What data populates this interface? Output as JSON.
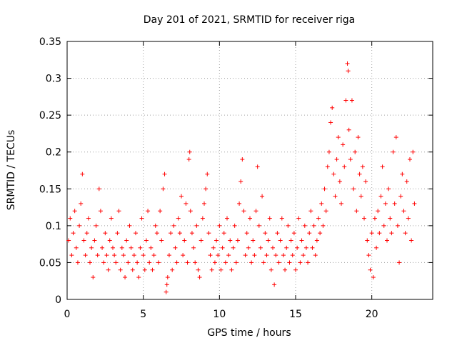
{
  "chart_data": {
    "type": "scatter",
    "title": "Day 201 of 2021, SRMTID for receiver riga",
    "xlabel": "GPS time / hours",
    "ylabel": "SRMTID / TECUs",
    "xlim": [
      0,
      24
    ],
    "ylim": [
      0,
      0.35
    ],
    "xticks": [
      0,
      5,
      10,
      15,
      20
    ],
    "xtick_labels": [
      "0",
      "5",
      "10",
      "15",
      "20"
    ],
    "yticks": [
      0,
      0.05,
      0.1,
      0.15,
      0.2,
      0.25,
      0.3,
      0.35
    ],
    "ytick_labels": [
      "0",
      "0.05",
      "0.1",
      "0.15",
      "0.2",
      "0.25",
      "0.3",
      "0.35"
    ],
    "grid": true,
    "marker": "+",
    "color": "#ff0000",
    "series": [
      {
        "name": "SRMTID",
        "points": [
          [
            0.1,
            0.08
          ],
          [
            0.2,
            0.11
          ],
          [
            0.3,
            0.06
          ],
          [
            0.4,
            0.09
          ],
          [
            0.5,
            0.12
          ],
          [
            0.6,
            0.07
          ],
          [
            0.7,
            0.05
          ],
          [
            0.8,
            0.1
          ],
          [
            0.9,
            0.13
          ],
          [
            1.0,
            0.17
          ],
          [
            1.1,
            0.08
          ],
          [
            1.2,
            0.06
          ],
          [
            1.3,
            0.09
          ],
          [
            1.4,
            0.11
          ],
          [
            1.5,
            0.05
          ],
          [
            1.6,
            0.07
          ],
          [
            1.7,
            0.03
          ],
          [
            1.8,
            0.08
          ],
          [
            1.9,
            0.1
          ],
          [
            2.0,
            0.06
          ],
          [
            2.1,
            0.15
          ],
          [
            2.2,
            0.12
          ],
          [
            2.3,
            0.07
          ],
          [
            2.4,
            0.05
          ],
          [
            2.5,
            0.09
          ],
          [
            2.6,
            0.06
          ],
          [
            2.7,
            0.04
          ],
          [
            2.8,
            0.08
          ],
          [
            2.9,
            0.11
          ],
          [
            3.0,
            0.07
          ],
          [
            3.1,
            0.06
          ],
          [
            3.2,
            0.05
          ],
          [
            3.3,
            0.09
          ],
          [
            3.4,
            0.12
          ],
          [
            3.5,
            0.04
          ],
          [
            3.6,
            0.07
          ],
          [
            3.7,
            0.06
          ],
          [
            3.8,
            0.03
          ],
          [
            3.9,
            0.08
          ],
          [
            4.0,
            0.05
          ],
          [
            4.1,
            0.1
          ],
          [
            4.2,
            0.07
          ],
          [
            4.3,
            0.04
          ],
          [
            4.4,
            0.06
          ],
          [
            4.5,
            0.09
          ],
          [
            4.6,
            0.05
          ],
          [
            4.7,
            0.03
          ],
          [
            4.8,
            0.07
          ],
          [
            4.9,
            0.11
          ],
          [
            5.0,
            0.06
          ],
          [
            5.1,
            0.04
          ],
          [
            5.2,
            0.08
          ],
          [
            5.3,
            0.12
          ],
          [
            5.4,
            0.05
          ],
          [
            5.5,
            0.07
          ],
          [
            5.6,
            0.04
          ],
          [
            5.7,
            0.06
          ],
          [
            5.8,
            0.1
          ],
          [
            5.9,
            0.09
          ],
          [
            6.0,
            0.05
          ],
          [
            6.1,
            0.12
          ],
          [
            6.2,
            0.08
          ],
          [
            6.3,
            0.15
          ],
          [
            6.4,
            0.17
          ],
          [
            6.5,
            0.01
          ],
          [
            6.55,
            0.02
          ],
          [
            6.6,
            0.03
          ],
          [
            6.7,
            0.06
          ],
          [
            6.8,
            0.09
          ],
          [
            6.9,
            0.04
          ],
          [
            7.0,
            0.1
          ],
          [
            7.1,
            0.07
          ],
          [
            7.2,
            0.05
          ],
          [
            7.3,
            0.11
          ],
          [
            7.4,
            0.09
          ],
          [
            7.5,
            0.14
          ],
          [
            7.6,
            0.06
          ],
          [
            7.7,
            0.08
          ],
          [
            7.8,
            0.13
          ],
          [
            7.9,
            0.05
          ],
          [
            8.0,
            0.19
          ],
          [
            8.05,
            0.2
          ],
          [
            8.1,
            0.12
          ],
          [
            8.2,
            0.09
          ],
          [
            8.3,
            0.07
          ],
          [
            8.4,
            0.05
          ],
          [
            8.5,
            0.1
          ],
          [
            8.6,
            0.04
          ],
          [
            8.7,
            0.03
          ],
          [
            8.8,
            0.08
          ],
          [
            8.9,
            0.11
          ],
          [
            9.0,
            0.13
          ],
          [
            9.1,
            0.15
          ],
          [
            9.2,
            0.17
          ],
          [
            9.3,
            0.09
          ],
          [
            9.4,
            0.06
          ],
          [
            9.5,
            0.04
          ],
          [
            9.6,
            0.07
          ],
          [
            9.7,
            0.05
          ],
          [
            9.8,
            0.08
          ],
          [
            9.9,
            0.06
          ],
          [
            10.0,
            0.1
          ],
          [
            10.1,
            0.04
          ],
          [
            10.2,
            0.07
          ],
          [
            10.3,
            0.09
          ],
          [
            10.4,
            0.05
          ],
          [
            10.5,
            0.11
          ],
          [
            10.6,
            0.06
          ],
          [
            10.7,
            0.08
          ],
          [
            10.8,
            0.04
          ],
          [
            10.9,
            0.07
          ],
          [
            11.0,
            0.1
          ],
          [
            11.1,
            0.05
          ],
          [
            11.2,
            0.08
          ],
          [
            11.3,
            0.13
          ],
          [
            11.4,
            0.16
          ],
          [
            11.5,
            0.19
          ],
          [
            11.6,
            0.12
          ],
          [
            11.7,
            0.06
          ],
          [
            11.8,
            0.09
          ],
          [
            11.9,
            0.07
          ],
          [
            12.0,
            0.11
          ],
          [
            12.1,
            0.05
          ],
          [
            12.2,
            0.08
          ],
          [
            12.3,
            0.06
          ],
          [
            12.4,
            0.12
          ],
          [
            12.5,
            0.18
          ],
          [
            12.6,
            0.1
          ],
          [
            12.7,
            0.07
          ],
          [
            12.8,
            0.14
          ],
          [
            12.9,
            0.05
          ],
          [
            13.0,
            0.09
          ],
          [
            13.1,
            0.06
          ],
          [
            13.2,
            0.08
          ],
          [
            13.3,
            0.11
          ],
          [
            13.4,
            0.04
          ],
          [
            13.5,
            0.07
          ],
          [
            13.6,
            0.02
          ],
          [
            13.7,
            0.06
          ],
          [
            13.8,
            0.09
          ],
          [
            13.9,
            0.05
          ],
          [
            14.0,
            0.08
          ],
          [
            14.1,
            0.11
          ],
          [
            14.2,
            0.06
          ],
          [
            14.3,
            0.04
          ],
          [
            14.4,
            0.07
          ],
          [
            14.5,
            0.1
          ],
          [
            14.6,
            0.05
          ],
          [
            14.7,
            0.08
          ],
          [
            14.8,
            0.06
          ],
          [
            14.9,
            0.09
          ],
          [
            15.0,
            0.04
          ],
          [
            15.1,
            0.07
          ],
          [
            15.2,
            0.11
          ],
          [
            15.3,
            0.05
          ],
          [
            15.4,
            0.08
          ],
          [
            15.5,
            0.06
          ],
          [
            15.6,
            0.1
          ],
          [
            15.7,
            0.07
          ],
          [
            15.8,
            0.05
          ],
          [
            15.9,
            0.09
          ],
          [
            16.0,
            0.12
          ],
          [
            16.1,
            0.07
          ],
          [
            16.2,
            0.1
          ],
          [
            16.3,
            0.06
          ],
          [
            16.4,
            0.08
          ],
          [
            16.5,
            0.11
          ],
          [
            16.6,
            0.09
          ],
          [
            16.7,
            0.13
          ],
          [
            16.8,
            0.1
          ],
          [
            16.9,
            0.15
          ],
          [
            17.0,
            0.12
          ],
          [
            17.1,
            0.18
          ],
          [
            17.2,
            0.2
          ],
          [
            17.3,
            0.24
          ],
          [
            17.4,
            0.26
          ],
          [
            17.5,
            0.17
          ],
          [
            17.6,
            0.14
          ],
          [
            17.7,
            0.19
          ],
          [
            17.8,
            0.22
          ],
          [
            17.9,
            0.16
          ],
          [
            18.0,
            0.13
          ],
          [
            18.1,
            0.21
          ],
          [
            18.2,
            0.18
          ],
          [
            18.3,
            0.27
          ],
          [
            18.4,
            0.32
          ],
          [
            18.45,
            0.31
          ],
          [
            18.5,
            0.23
          ],
          [
            18.6,
            0.19
          ],
          [
            18.7,
            0.27
          ],
          [
            18.8,
            0.15
          ],
          [
            18.9,
            0.2
          ],
          [
            19.0,
            0.12
          ],
          [
            19.1,
            0.22
          ],
          [
            19.2,
            0.17
          ],
          [
            19.3,
            0.14
          ],
          [
            19.4,
            0.18
          ],
          [
            19.5,
            0.11
          ],
          [
            19.6,
            0.16
          ],
          [
            19.7,
            0.08
          ],
          [
            19.8,
            0.06
          ],
          [
            19.9,
            0.04
          ],
          [
            20.0,
            0.09
          ],
          [
            20.1,
            0.03
          ],
          [
            20.2,
            0.11
          ],
          [
            20.3,
            0.07
          ],
          [
            20.4,
            0.12
          ],
          [
            20.5,
            0.09
          ],
          [
            20.6,
            0.14
          ],
          [
            20.7,
            0.18
          ],
          [
            20.8,
            0.1
          ],
          [
            20.9,
            0.13
          ],
          [
            21.0,
            0.08
          ],
          [
            21.1,
            0.15
          ],
          [
            21.2,
            0.11
          ],
          [
            21.3,
            0.09
          ],
          [
            21.4,
            0.2
          ],
          [
            21.5,
            0.13
          ],
          [
            21.6,
            0.22
          ],
          [
            21.7,
            0.1
          ],
          [
            21.8,
            0.05
          ],
          [
            21.9,
            0.14
          ],
          [
            22.0,
            0.17
          ],
          [
            22.1,
            0.12
          ],
          [
            22.2,
            0.09
          ],
          [
            22.3,
            0.16
          ],
          [
            22.4,
            0.11
          ],
          [
            22.5,
            0.19
          ],
          [
            22.6,
            0.08
          ],
          [
            22.7,
            0.2
          ],
          [
            22.8,
            0.13
          ]
        ]
      }
    ]
  }
}
